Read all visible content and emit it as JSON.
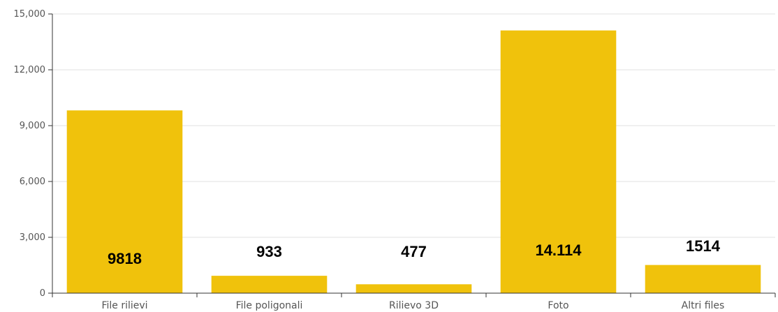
{
  "chart_data": {
    "type": "bar",
    "categories": [
      "File rilievi",
      "File poligonali",
      "Rilievo 3D",
      "Foto",
      "Altri files"
    ],
    "values": [
      9818,
      933,
      477,
      14114,
      1514
    ],
    "data_labels": [
      "9818",
      "933",
      "477",
      "14.114",
      "1514"
    ],
    "ylim": [
      0,
      15000
    ],
    "yticks": [
      0,
      3000,
      6000,
      9000,
      12000,
      15000
    ],
    "ytick_labels": [
      "0",
      "3,000",
      "6,000",
      "9,000",
      "12,000",
      "15,000"
    ],
    "grid": true,
    "bar_color": "#f0c20c",
    "grid_color": "#e0e0e0",
    "axis_color": "#333333"
  }
}
